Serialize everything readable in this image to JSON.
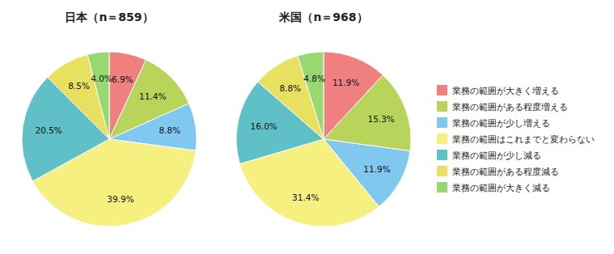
{
  "chart_data": [
    {
      "type": "pie",
      "title": "日本（n＝859）",
      "categories": [
        "業務の範囲が大きく増える",
        "業務の範囲がある程度増える",
        "業務の範囲が少し増える",
        "業務の範囲はこれまでと変わらない",
        "業務の範囲が少し減る",
        "業務の範囲がある程度減る",
        "業務の範囲が大きく減る"
      ],
      "values": [
        6.9,
        11.4,
        8.8,
        39.9,
        20.5,
        8.5,
        4.0
      ],
      "value_labels": [
        "6.9%",
        "11.4%",
        "8.8%",
        "39.9%",
        "20.5%",
        "8.5%",
        "4.0%"
      ],
      "colors": [
        "#f08080",
        "#b8d45a",
        "#80c8f0",
        "#f5f080",
        "#60c0c8",
        "#e8e060",
        "#98d870"
      ],
      "data_labels": true,
      "legend": "right"
    },
    {
      "type": "pie",
      "title": "米国（n＝968）",
      "categories": [
        "業務の範囲が大きく増える",
        "業務の範囲がある程度増える",
        "業務の範囲が少し増える",
        "業務の範囲はこれまでと変わらない",
        "業務の範囲が少し減る",
        "業務の範囲がある程度減る",
        "業務の範囲が大きく減る"
      ],
      "values": [
        11.9,
        15.3,
        11.9,
        31.4,
        16.0,
        8.8,
        4.8
      ],
      "value_labels": [
        "11.9%",
        "15.3%",
        "11.9%",
        "31.4%",
        "16.0%",
        "8.8%",
        "4.8%"
      ],
      "colors": [
        "#f08080",
        "#b8d45a",
        "#80c8f0",
        "#f5f080",
        "#60c0c8",
        "#e8e060",
        "#98d870"
      ],
      "data_labels": true,
      "legend": "right"
    }
  ]
}
